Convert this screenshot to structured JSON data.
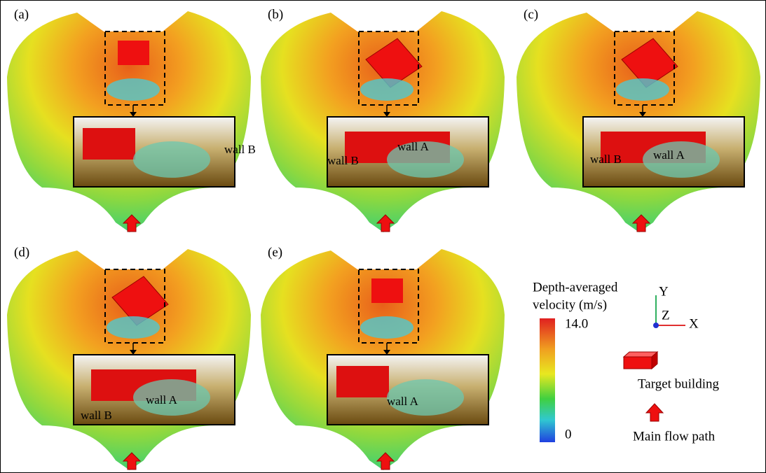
{
  "panels": [
    {
      "label": "(a)",
      "insets": [
        "wall B"
      ]
    },
    {
      "label": "(b)",
      "insets": [
        "wall B",
        "wall A"
      ]
    },
    {
      "label": "(c)",
      "insets": [
        "wall B",
        "wall A"
      ]
    },
    {
      "label": "(d)",
      "insets": [
        "wall B",
        "wall A"
      ]
    },
    {
      "label": "(e)",
      "insets": [
        "wall A"
      ]
    }
  ],
  "legend": {
    "title_lines": [
      "Depth-averaged",
      "velocity (m/s)"
    ],
    "max": "14.0",
    "min": "0",
    "axes": [
      "Y",
      "Z",
      "X"
    ],
    "items": [
      "Target building",
      "Main flow path"
    ]
  }
}
